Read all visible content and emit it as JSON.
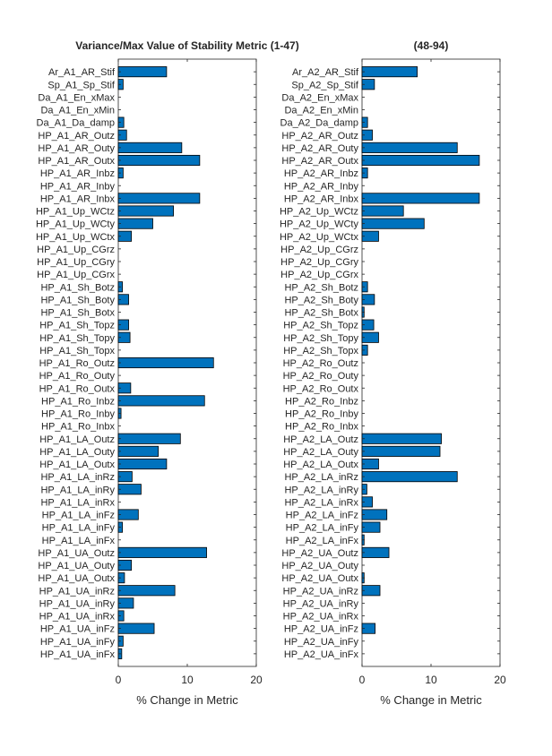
{
  "chart_data": [
    {
      "type": "bar",
      "orientation": "horizontal",
      "title": "Variance/Max Value of Stability Metric (1-47)",
      "xlabel": "% Change in Metric",
      "ylabel": "",
      "xlim": [
        0,
        20
      ],
      "xticks": [
        "0",
        "10",
        "20"
      ],
      "bar_color": "#0072BD",
      "categories": [
        "Ar_A1_AR_Stif",
        "Sp_A1_Sp_Stif",
        "Da_A1_En_xMax",
        "Da_A1_En_xMin",
        "Da_A1_Da_damp",
        "HP_A1_AR_Outz",
        "HP_A1_AR_Outy",
        "HP_A1_AR_Outx",
        "HP_A1_AR_Inbz",
        "HP_A1_AR_Inby",
        "HP_A1_AR_Inbx",
        "HP_A1_Up_WCtz",
        "HP_A1_Up_WCty",
        "HP_A1_Up_WCtx",
        "HP_A1_Up_CGrz",
        "HP_A1_Up_CGry",
        "HP_A1_Up_CGrx",
        "HP_A1_Sh_Botz",
        "HP_A1_Sh_Boty",
        "HP_A1_Sh_Botx",
        "HP_A1_Sh_Topz",
        "HP_A1_Sh_Topy",
        "HP_A1_Sh_Topx",
        "HP_A1_Ro_Outz",
        "HP_A1_Ro_Outy",
        "HP_A1_Ro_Outx",
        "HP_A1_Ro_Inbz",
        "HP_A1_Ro_Inby",
        "HP_A1_Ro_Inbx",
        "HP_A1_LA_Outz",
        "HP_A1_LA_Outy",
        "HP_A1_LA_Outx",
        "HP_A1_LA_inRz",
        "HP_A1_LA_inRy",
        "HP_A1_LA_inRx",
        "HP_A1_LA_inFz",
        "HP_A1_LA_inFy",
        "HP_A1_LA_inFx",
        "HP_A1_UA_Outz",
        "HP_A1_UA_Outy",
        "HP_A1_UA_Outx",
        "HP_A1_UA_inRz",
        "HP_A1_UA_inRy",
        "HP_A1_UA_inRx",
        "HP_A1_UA_inFz",
        "HP_A1_UA_inFy",
        "HP_A1_UA_inFx"
      ],
      "values": [
        7.0,
        0.7,
        0,
        0,
        0.8,
        1.2,
        9.2,
        11.8,
        0.7,
        0,
        11.8,
        8.0,
        5.0,
        1.9,
        0,
        0,
        0,
        0.6,
        1.5,
        0,
        1.5,
        1.7,
        0,
        13.8,
        0,
        1.8,
        12.5,
        0.4,
        0,
        9.0,
        5.8,
        7.0,
        2.0,
        3.3,
        0,
        2.9,
        0.6,
        0,
        12.8,
        1.9,
        0.9,
        8.2,
        2.2,
        0.8,
        5.2,
        0.7,
        0.5
      ]
    },
    {
      "type": "bar",
      "orientation": "horizontal",
      "title": "(48-94)",
      "xlabel": "% Change in Metric",
      "ylabel": "",
      "xlim": [
        0,
        20
      ],
      "xticks": [
        "0",
        "10",
        "20"
      ],
      "bar_color": "#0072BD",
      "categories": [
        "Ar_A2_AR_Stif",
        "Sp_A2_Sp_Stif",
        "Da_A2_En_xMax",
        "Da_A2_En_xMin",
        "Da_A2_Da_damp",
        "HP_A2_AR_Outz",
        "HP_A2_AR_Outy",
        "HP_A2_AR_Outx",
        "HP_A2_AR_Inbz",
        "HP_A2_AR_Inby",
        "HP_A2_AR_Inbx",
        "HP_A2_Up_WCtz",
        "HP_A2_Up_WCty",
        "HP_A2_Up_WCtx",
        "HP_A2_Up_CGrz",
        "HP_A2_Up_CGry",
        "HP_A2_Up_CGrx",
        "HP_A2_Sh_Botz",
        "HP_A2_Sh_Boty",
        "HP_A2_Sh_Botx",
        "HP_A2_Sh_Topz",
        "HP_A2_Sh_Topy",
        "HP_A2_Sh_Topx",
        "HP_A2_Ro_Outz",
        "HP_A2_Ro_Outy",
        "HP_A2_Ro_Outx",
        "HP_A2_Ro_Inbz",
        "HP_A2_Ro_Inby",
        "HP_A2_Ro_Inbx",
        "HP_A2_LA_Outz",
        "HP_A2_LA_Outy",
        "HP_A2_LA_Outx",
        "HP_A2_LA_inRz",
        "HP_A2_LA_inRy",
        "HP_A2_LA_inRx",
        "HP_A2_LA_inFz",
        "HP_A2_LA_inFy",
        "HP_A2_LA_inFx",
        "HP_A2_UA_Outz",
        "HP_A2_UA_Outy",
        "HP_A2_UA_Outx",
        "HP_A2_UA_inRz",
        "HP_A2_UA_inRy",
        "HP_A2_UA_inRx",
        "HP_A2_UA_inFz",
        "HP_A2_UA_inFy",
        "HP_A2_UA_inFx"
      ],
      "values": [
        8.0,
        1.8,
        0,
        0,
        0.8,
        1.5,
        13.8,
        17.0,
        0.8,
        0,
        17.0,
        6.0,
        9.0,
        2.4,
        0,
        0,
        0,
        0.8,
        1.8,
        0.3,
        1.7,
        2.4,
        0.8,
        0,
        0,
        0,
        0,
        0,
        0,
        11.5,
        11.3,
        2.4,
        13.8,
        0.7,
        1.5,
        3.6,
        2.6,
        0.3,
        3.9,
        0,
        0.3,
        2.6,
        0,
        0,
        1.9,
        0,
        0
      ]
    }
  ]
}
